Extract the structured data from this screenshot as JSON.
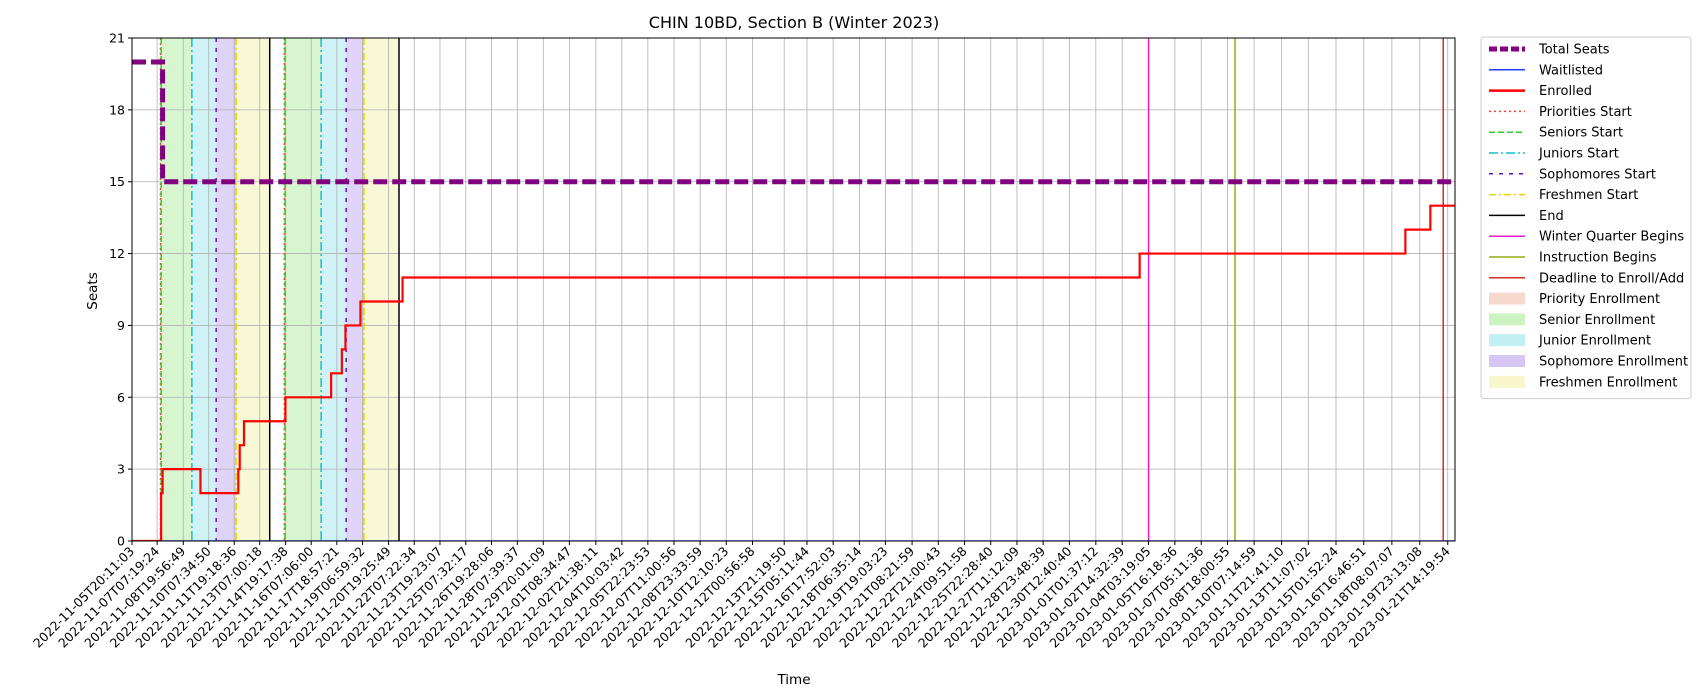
{
  "chart_data": {
    "type": "line",
    "title": "CHIN 10BD, Section B (Winter 2023)",
    "xlabel": "Time",
    "ylabel": "Seats",
    "x_start": "2022-11-05T20:11:03",
    "x_end": "2023-01-22T00:30:00",
    "ylim": [
      0,
      21
    ],
    "yticks": [
      0,
      3,
      6,
      9,
      12,
      15,
      18,
      21
    ],
    "grid": true,
    "legend_placement": "outside-right-top",
    "xtick_labels": [
      "2022-11-05T20:11:03",
      "2022-11-07T07:19:24",
      "2022-11-08T19:56:49",
      "2022-11-10T07:34:50",
      "2022-11-11T19:18:36",
      "2022-11-13T07:00:18",
      "2022-11-14T19:17:38",
      "2022-11-16T07:06:00",
      "2022-11-17T18:57:21",
      "2022-11-19T06:59:32",
      "2022-11-20T19:25:49",
      "2022-11-22T07:22:34",
      "2022-11-23T19:23:07",
      "2022-11-25T07:32:17",
      "2022-11-26T19:28:06",
      "2022-11-28T07:39:37",
      "2022-11-29T20:01:09",
      "2022-12-01T08:34:47",
      "2022-12-02T21:38:11",
      "2022-12-04T10:03:42",
      "2022-12-05T22:23:53",
      "2022-12-07T11:00:56",
      "2022-12-08T23:33:59",
      "2022-12-10T12:10:23",
      "2022-12-12T00:56:58",
      "2022-12-13T21:19:50",
      "2022-12-15T05:11:44",
      "2022-12-16T17:52:03",
      "2022-12-18T06:35:14",
      "2022-12-19T19:03:23",
      "2022-12-21T08:21:59",
      "2022-12-22T21:00:43",
      "2022-12-24T09:51:58",
      "2022-12-25T22:28:40",
      "2022-12-27T11:12:09",
      "2022-12-28T23:48:39",
      "2022-12-30T12:40:40",
      "2023-01-01T01:37:12",
      "2023-01-02T14:32:39",
      "2023-01-04T03:19:05",
      "2023-01-05T16:18:36",
      "2023-01-07T05:11:36",
      "2023-01-08T18:00:55",
      "2023-01-10T07:14:59",
      "2023-01-11T21:41:10",
      "2023-01-13T11:07:02",
      "2023-01-15T01:52:24",
      "2023-01-16T16:46:51",
      "2023-01-18T08:07:07",
      "2023-01-19T23:13:08",
      "2023-01-21T14:19:54"
    ],
    "shaded_periods": [
      {
        "name": "Priority Enrollment",
        "color": "#f4c7b8",
        "ranges": [
          [
            "2022-11-07T12:00:00",
            "2022-11-07T13:00:00"
          ],
          [
            "2022-11-14T17:30:00",
            "2022-11-14T18:30:00"
          ]
        ]
      },
      {
        "name": "Senior Enrollment",
        "color": "#b7eea7",
        "ranges": [
          [
            "2022-11-07T13:00:00",
            "2022-11-09T08:00:00"
          ],
          [
            "2022-11-14T18:30:00",
            "2022-11-16T21:00:00"
          ]
        ]
      },
      {
        "name": "Junior Enrollment",
        "color": "#a7e8ee",
        "ranges": [
          [
            "2022-11-09T08:00:00",
            "2022-11-10T18:00:00"
          ],
          [
            "2022-11-16T21:00:00",
            "2022-11-18T08:00:00"
          ]
        ]
      },
      {
        "name": "Sophomore Enrollment",
        "color": "#c4aef0",
        "ranges": [
          [
            "2022-11-10T18:00:00",
            "2022-11-11T22:00:00"
          ],
          [
            "2022-11-18T08:00:00",
            "2022-11-19T09:00:00"
          ]
        ]
      },
      {
        "name": "Freshmen Enrollment",
        "color": "#f3f3b5",
        "ranges": [
          [
            "2022-11-11T22:00:00",
            "2022-11-13T21:00:00"
          ],
          [
            "2022-11-19T09:00:00",
            "2022-11-21T10:00:00"
          ]
        ]
      }
    ],
    "vertical_lines": [
      {
        "name": "Priorities Start",
        "color": "#ff3b30",
        "dash": "2,3",
        "at": [
          "2022-11-07T12:00:00",
          "2022-11-14T17:30:00"
        ]
      },
      {
        "name": "Seniors Start",
        "color": "#2ecc2e",
        "dash": "6,3",
        "at": [
          "2022-11-07T13:00:00",
          "2022-11-14T18:30:00"
        ]
      },
      {
        "name": "Juniors Start",
        "color": "#17becf",
        "dash": "9,3,2,3",
        "at": [
          "2022-11-09T08:00:00",
          "2022-11-16T21:00:00"
        ]
      },
      {
        "name": "Sophomores Start",
        "color": "#5a14c8",
        "dash": "4,6",
        "at": [
          "2022-11-10T18:00:00",
          "2022-11-18T08:00:00"
        ]
      },
      {
        "name": "Freshmen Start",
        "color": "#e3d400",
        "dash": "7,3,2,3",
        "at": [
          "2022-11-11T22:00:00",
          "2022-11-19T09:00:00"
        ]
      },
      {
        "name": "End",
        "color": "#000000",
        "dash": "",
        "at": [
          "2022-11-13T21:00:00",
          "2022-11-21T10:00:00"
        ]
      },
      {
        "name": "Winter Quarter Begins",
        "color": "#e61cc8",
        "dash": "",
        "at": [
          "2023-01-04T03:30:00"
        ]
      },
      {
        "name": "Instruction Begins",
        "color": "#8fad15",
        "dash": "",
        "at": [
          "2023-01-09T04:30:00"
        ]
      },
      {
        "name": "Deadline to Enroll/Add",
        "color": "#d62d1c",
        "dash": "",
        "at": [
          "2023-01-21T08:00:00"
        ]
      }
    ],
    "series": [
      {
        "name": "Total Seats",
        "color": "#800080",
        "points": [
          [
            "2022-11-05T20:11:03",
            20
          ],
          [
            "2022-11-07T15:00:00",
            20
          ],
          [
            "2022-11-07T15:00:00",
            15
          ],
          [
            "2023-01-22T00:30:00",
            15
          ]
        ]
      },
      {
        "name": "Waitlisted",
        "color": "#1f3cff",
        "points": [
          [
            "2022-11-05T20:11:03",
            0
          ],
          [
            "2023-01-22T00:30:00",
            0
          ]
        ]
      },
      {
        "name": "Enrolled",
        "color": "#ff0000",
        "points": [
          [
            "2022-11-05T20:11:03",
            0
          ],
          [
            "2022-11-07T13:00:00",
            0
          ],
          [
            "2022-11-07T13:00:00",
            2
          ],
          [
            "2022-11-07T15:00:00",
            2
          ],
          [
            "2022-11-07T15:00:00",
            3
          ],
          [
            "2022-11-09T20:00:00",
            3
          ],
          [
            "2022-11-09T20:00:00",
            2
          ],
          [
            "2022-11-12T01:00:00",
            2
          ],
          [
            "2022-11-12T01:00:00",
            3
          ],
          [
            "2022-11-12T03:00:00",
            3
          ],
          [
            "2022-11-12T03:00:00",
            4
          ],
          [
            "2022-11-12T09:00:00",
            4
          ],
          [
            "2022-11-12T09:00:00",
            5
          ],
          [
            "2022-11-14T19:00:00",
            5
          ],
          [
            "2022-11-14T19:00:00",
            6
          ],
          [
            "2022-11-17T11:00:00",
            6
          ],
          [
            "2022-11-17T11:00:00",
            7
          ],
          [
            "2022-11-18T02:00:00",
            7
          ],
          [
            "2022-11-18T02:00:00",
            8
          ],
          [
            "2022-11-18T07:00:00",
            8
          ],
          [
            "2022-11-18T07:00:00",
            9
          ],
          [
            "2022-11-19T04:00:00",
            9
          ],
          [
            "2022-11-19T04:00:00",
            10
          ],
          [
            "2022-11-21T15:00:00",
            10
          ],
          [
            "2022-11-21T15:00:00",
            11
          ],
          [
            "2023-01-03T15:00:00",
            11
          ],
          [
            "2023-01-03T15:00:00",
            12
          ],
          [
            "2023-01-19T03:00:00",
            12
          ],
          [
            "2023-01-19T03:00:00",
            13
          ],
          [
            "2023-01-20T14:00:00",
            13
          ],
          [
            "2023-01-20T14:00:00",
            14
          ],
          [
            "2023-01-22T00:30:00",
            14
          ]
        ]
      }
    ],
    "legend": [
      {
        "label": "Total Seats",
        "kind": "line",
        "color": "#800080",
        "width": 5,
        "dash": "8,3"
      },
      {
        "label": "Waitlisted",
        "kind": "line",
        "color": "#1f3cff",
        "width": 1.5,
        "dash": ""
      },
      {
        "label": "Enrolled",
        "kind": "line",
        "color": "#ff0000",
        "width": 2.5,
        "dash": ""
      },
      {
        "label": "Priorities Start",
        "kind": "line",
        "color": "#ff3b30",
        "width": 1.5,
        "dash": "2,3"
      },
      {
        "label": "Seniors Start",
        "kind": "line",
        "color": "#2ecc2e",
        "width": 1.5,
        "dash": "6,3"
      },
      {
        "label": "Juniors Start",
        "kind": "line",
        "color": "#17becf",
        "width": 1.5,
        "dash": "9,3,2,3"
      },
      {
        "label": "Sophomores Start",
        "kind": "line",
        "color": "#5a14c8",
        "width": 1.5,
        "dash": "4,6"
      },
      {
        "label": "Freshmen Start",
        "kind": "line",
        "color": "#e3d400",
        "width": 1.5,
        "dash": "7,3,2,3"
      },
      {
        "label": "End",
        "kind": "line",
        "color": "#000000",
        "width": 1.5,
        "dash": ""
      },
      {
        "label": "Winter Quarter Begins",
        "kind": "line",
        "color": "#e61cc8",
        "width": 1.5,
        "dash": ""
      },
      {
        "label": "Instruction Begins",
        "kind": "line",
        "color": "#8fad15",
        "width": 1.5,
        "dash": ""
      },
      {
        "label": "Deadline to Enroll/Add",
        "kind": "line",
        "color": "#d62d1c",
        "width": 1.5,
        "dash": ""
      },
      {
        "label": "Priority Enrollment",
        "kind": "patch",
        "color": "#f4c7b8"
      },
      {
        "label": "Senior Enrollment",
        "kind": "patch",
        "color": "#b7eea7"
      },
      {
        "label": "Junior Enrollment",
        "kind": "patch",
        "color": "#a7e8ee"
      },
      {
        "label": "Sophomore Enrollment",
        "kind": "patch",
        "color": "#c4aef0"
      },
      {
        "label": "Freshmen Enrollment",
        "kind": "patch",
        "color": "#f3f3b5"
      }
    ]
  }
}
